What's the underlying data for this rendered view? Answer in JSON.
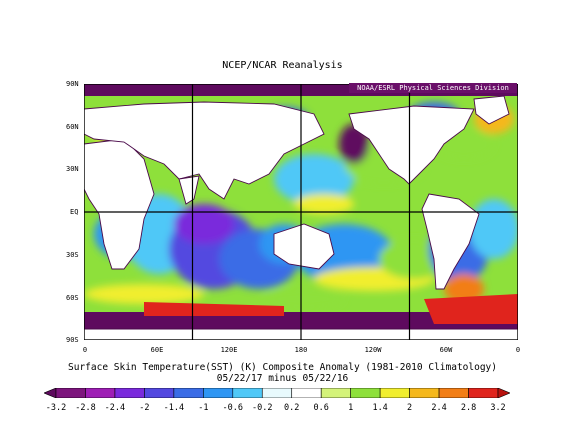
{
  "header": {
    "title": "NCEP/NCAR Reanalysis",
    "credit": "NOAA/ESRL Physical Sciences Division"
  },
  "axes": {
    "lat_labels": [
      "90N",
      "60N",
      "30N",
      "EQ",
      "30S",
      "60S",
      "90S"
    ],
    "lon_labels": [
      "0",
      "60E",
      "120E",
      "180",
      "120W",
      "60W",
      "0"
    ]
  },
  "caption": {
    "line1": "Surface Skin Temperature(SST) (K) Composite Anomaly (1981-2010 Climatology)",
    "line2": "05/22/17 minus 05/22/16"
  },
  "colorbar": {
    "labels": [
      "-3.2",
      "-2.8",
      "-2.4",
      "-2",
      "-1.4",
      "-1",
      "-0.6",
      "-0.2",
      "0.2",
      "0.6",
      "1",
      "1.4",
      "2",
      "2.4",
      "2.8",
      "3.2"
    ],
    "colors": [
      "#5e0a5e",
      "#7d157d",
      "#9e1eb5",
      "#7a2adc",
      "#5348e0",
      "#3a6ce6",
      "#2f96f3",
      "#4fc8f7",
      "#e8fafd",
      "#ffffff",
      "#d4f37a",
      "#8ee03b",
      "#f1ee2e",
      "#f5b81c",
      "#f27e16",
      "#e0241d",
      "#b8120f"
    ]
  },
  "legend_regions": {
    "mostly": [
      "cold anomalies (blue/purple) in western Pacific and Indian Ocean",
      "warm anomalies (green/yellow) in eastern Pacific and Atlantic"
    ]
  }
}
